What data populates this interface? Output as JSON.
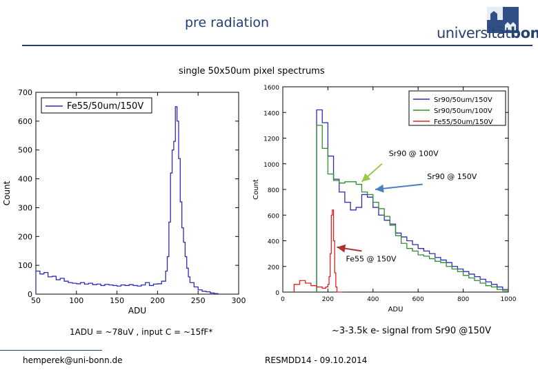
{
  "header": {
    "title": "pre radiation",
    "logo": {
      "text_a": "universität",
      "text_b": "bonn"
    }
  },
  "subtitle": "single 50x50um pixel spectrums",
  "notes": {
    "left": "1ADU = ~78uV , input C = ~15fF*",
    "right": "~3-3.5k e- signal from Sr90 @150V"
  },
  "footer": {
    "left": "hemperek@uni-bonn.de",
    "center": "RESMDD14 - 09.10.2014"
  },
  "colors": {
    "accent": "#1f3e78",
    "blue_series": "#2b2bb8",
    "green_series": "#2e8b2e",
    "red_series": "#e02020",
    "annotation_arrow_green": "#9cc848",
    "annotation_arrow_blue": "#4b7fbf",
    "annotation_arrow_red": "#b03030"
  },
  "chart_data": [
    {
      "type": "line",
      "style": "step",
      "title": "",
      "xlabel": "ADU",
      "ylabel": "Count",
      "xlim": [
        50,
        300
      ],
      "ylim": [
        0,
        700
      ],
      "xticks": [
        "50",
        "100",
        "150",
        "200",
        "250",
        "300"
      ],
      "yticks": [
        "0",
        "100",
        "200",
        "300",
        "400",
        "500",
        "600",
        "700"
      ],
      "legend": {
        "position": "top-left",
        "entries": [
          "Fe55/50um/150V"
        ]
      },
      "series": [
        {
          "name": "Fe55/50um/150V",
          "color": "#2b2bb8",
          "x": [
            50,
            55,
            60,
            65,
            70,
            75,
            80,
            85,
            90,
            95,
            100,
            105,
            110,
            115,
            120,
            125,
            130,
            135,
            140,
            145,
            150,
            155,
            160,
            165,
            170,
            175,
            180,
            185,
            190,
            195,
            200,
            205,
            210,
            212,
            214,
            216,
            218,
            220,
            222,
            224,
            226,
            228,
            230,
            232,
            234,
            236,
            238,
            240,
            245,
            250,
            255,
            260,
            265,
            270
          ],
          "y": [
            80,
            70,
            75,
            60,
            62,
            50,
            55,
            45,
            40,
            38,
            36,
            40,
            35,
            38,
            33,
            35,
            30,
            34,
            32,
            30,
            28,
            32,
            30,
            33,
            30,
            28,
            32,
            40,
            30,
            35,
            36,
            45,
            80,
            130,
            250,
            420,
            500,
            530,
            650,
            600,
            470,
            320,
            230,
            180,
            130,
            90,
            60,
            40,
            25,
            15,
            10,
            8,
            4,
            2
          ]
        }
      ]
    },
    {
      "type": "line",
      "style": "step",
      "title": "",
      "xlabel": "ADU",
      "ylabel": "Count",
      "xlim": [
        0,
        1000
      ],
      "ylim": [
        0,
        1600
      ],
      "xticks": [
        "0",
        "200",
        "400",
        "600",
        "800",
        "1000"
      ],
      "yticks": [
        "0",
        "200",
        "400",
        "600",
        "800",
        "1000",
        "1200",
        "1400",
        "1600"
      ],
      "legend": {
        "position": "top-right",
        "entries": [
          "Sr90/50um/150V",
          "Sr90/50um/100V",
          "Fe55/50um/150V"
        ]
      },
      "series": [
        {
          "name": "Sr90/50um/150V",
          "color": "#2b2bb8",
          "x": [
            150,
            175,
            200,
            225,
            250,
            275,
            300,
            325,
            350,
            375,
            400,
            425,
            450,
            475,
            500,
            525,
            550,
            575,
            600,
            625,
            650,
            675,
            700,
            725,
            750,
            775,
            800,
            825,
            850,
            875,
            900,
            925,
            950,
            975
          ],
          "y": [
            1420,
            1320,
            1060,
            880,
            780,
            700,
            640,
            660,
            760,
            740,
            660,
            600,
            560,
            530,
            460,
            430,
            400,
            370,
            340,
            320,
            300,
            270,
            250,
            230,
            200,
            180,
            160,
            140,
            120,
            100,
            80,
            60,
            40,
            20
          ]
        },
        {
          "name": "Sr90/50um/100V",
          "color": "#2e8b2e",
          "x": [
            150,
            175,
            200,
            225,
            250,
            275,
            300,
            325,
            350,
            375,
            400,
            425,
            450,
            475,
            500,
            525,
            550,
            575,
            600,
            625,
            650,
            675,
            700,
            725,
            750,
            775,
            800,
            825,
            850,
            875,
            900,
            925,
            950,
            975
          ],
          "y": [
            1300,
            1120,
            920,
            870,
            850,
            860,
            860,
            840,
            780,
            760,
            700,
            650,
            590,
            520,
            440,
            380,
            340,
            320,
            290,
            280,
            260,
            240,
            230,
            200,
            180,
            160,
            130,
            110,
            90,
            70,
            50,
            40,
            20,
            10
          ]
        },
        {
          "name": "Fe55/50um/150V",
          "color": "#e02020",
          "x": [
            50,
            75,
            100,
            125,
            150,
            175,
            190,
            200,
            205,
            210,
            215,
            220,
            225,
            230,
            235,
            240
          ],
          "y": [
            60,
            90,
            70,
            50,
            40,
            30,
            40,
            60,
            120,
            300,
            600,
            640,
            400,
            150,
            40,
            0
          ]
        }
      ],
      "annotations": [
        {
          "text": "Sr90 @ 100V"
        },
        {
          "text": "Sr90 @ 150V"
        },
        {
          "text": "Fe55 @ 150V"
        }
      ]
    }
  ]
}
